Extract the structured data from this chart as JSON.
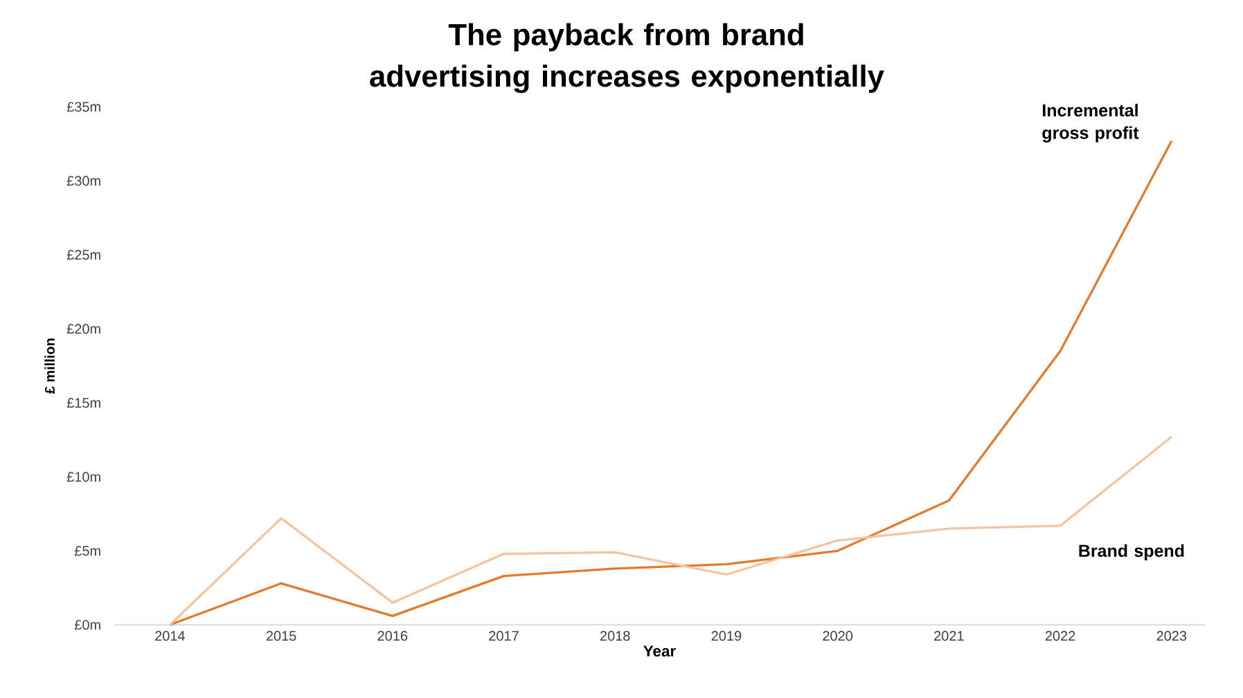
{
  "chart_data": {
    "type": "line",
    "title": "The payback from brand advertising increases exponentially",
    "xlabel": "Year",
    "ylabel": "£ million",
    "categories": [
      "2014",
      "2015",
      "2016",
      "2017",
      "2018",
      "2019",
      "2020",
      "2021",
      "2022",
      "2023"
    ],
    "series": [
      {
        "name": "Incremental gross profit",
        "color": "#e8782a",
        "values": [
          0,
          2.8,
          0.6,
          3.3,
          3.8,
          4.1,
          5.0,
          8.4,
          18.5,
          32.7
        ]
      },
      {
        "name": "Brand spend",
        "color": "#f5c3a0",
        "values": [
          0,
          7.2,
          1.5,
          4.8,
          4.9,
          3.4,
          5.7,
          6.5,
          6.7,
          12.7
        ]
      }
    ],
    "ylim": [
      0,
      35
    ],
    "yticks": [
      {
        "value": 0,
        "label": "£0m"
      },
      {
        "value": 5,
        "label": "£5m"
      },
      {
        "value": 10,
        "label": "£10m"
      },
      {
        "value": 15,
        "label": "£15m"
      },
      {
        "value": 20,
        "label": "£20m"
      },
      {
        "value": 25,
        "label": "£25m"
      },
      {
        "value": 30,
        "label": "£30m"
      },
      {
        "value": 35,
        "label": "£35m"
      }
    ],
    "grid": false
  }
}
